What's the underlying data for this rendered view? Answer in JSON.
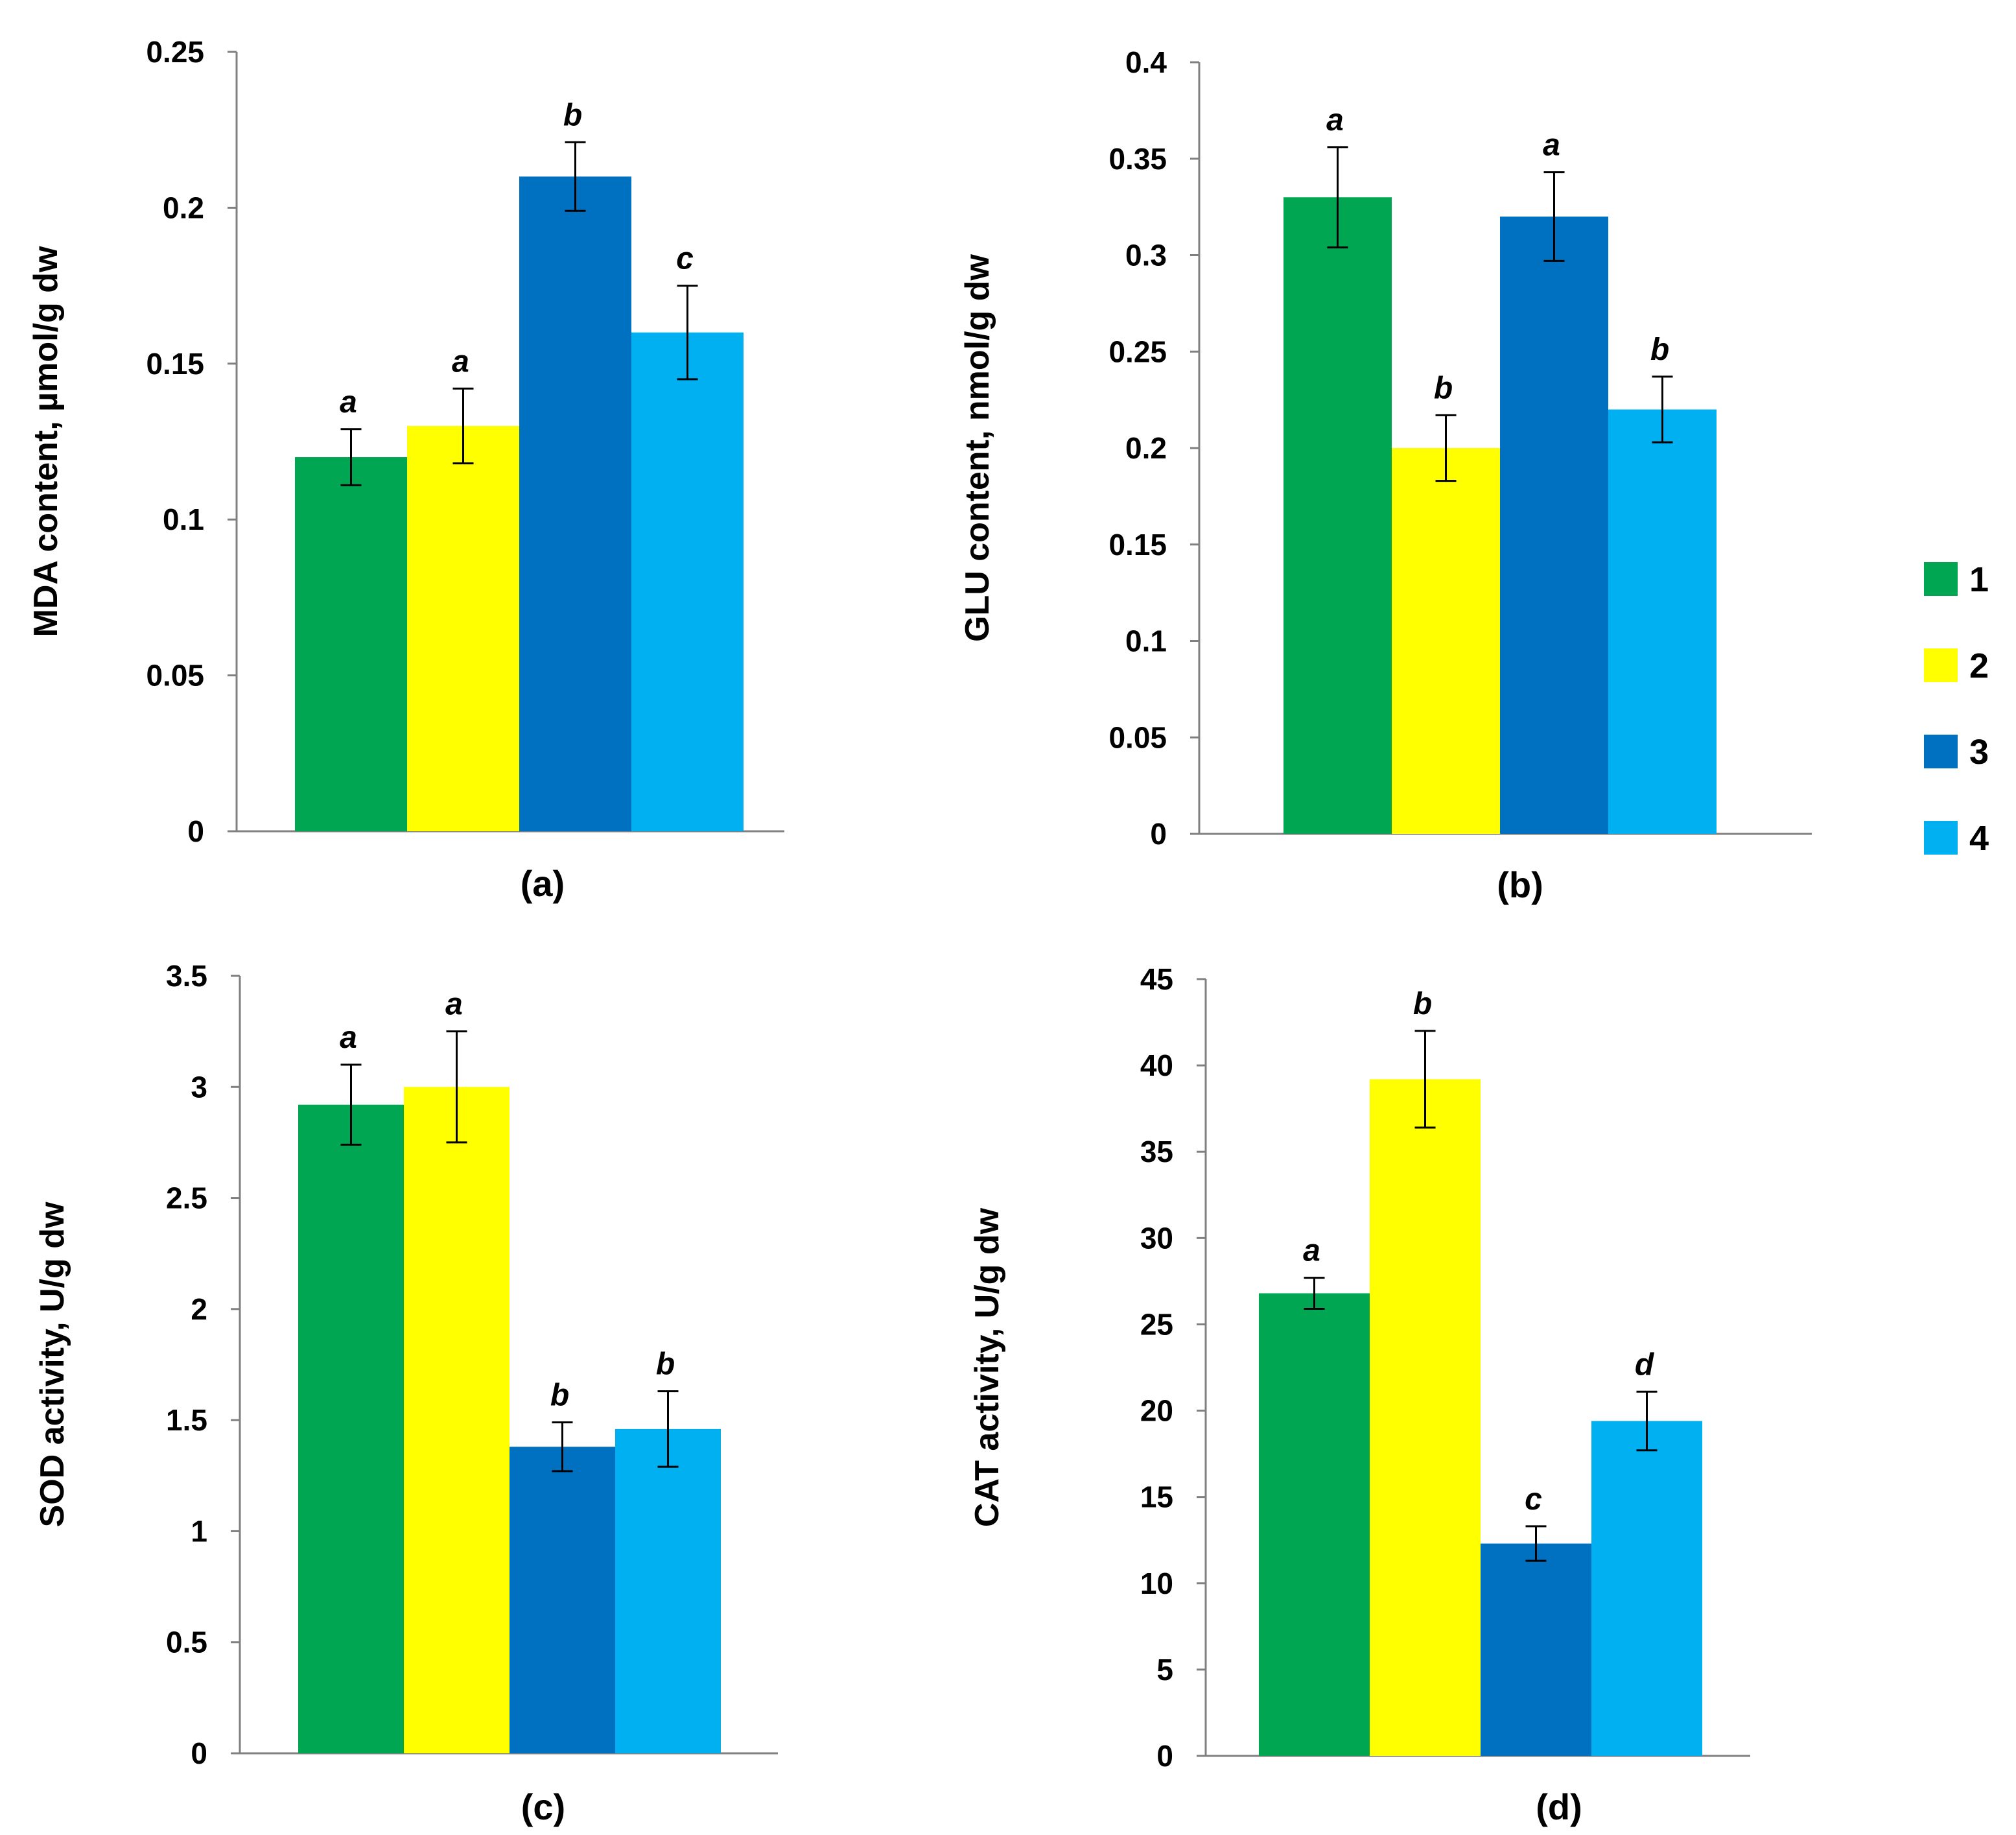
{
  "chart_data": [
    {
      "id": "a",
      "type": "bar",
      "panel_label": "(a)",
      "ylabel": "MDA content, µmol/g dw",
      "ylim": [
        0,
        0.25
      ],
      "yticks": [
        0,
        0.05,
        0.1,
        0.15,
        0.2,
        0.25
      ],
      "ytick_labels": [
        "0",
        "0.05",
        "0.1",
        "0.15",
        "0.2",
        "0.25"
      ],
      "categories": [
        "1",
        "2",
        "3",
        "4"
      ],
      "values": [
        0.12,
        0.13,
        0.21,
        0.16
      ],
      "errors": [
        0.009,
        0.012,
        0.011,
        0.015
      ],
      "significance": [
        "a",
        "a",
        "b",
        "c"
      ]
    },
    {
      "id": "b",
      "type": "bar",
      "panel_label": "(b)",
      "ylabel": "GLU content, nmol/g dw",
      "ylim": [
        0,
        0.4
      ],
      "yticks": [
        0,
        0.05,
        0.1,
        0.15,
        0.2,
        0.25,
        0.3,
        0.35,
        0.4
      ],
      "ytick_labels": [
        "0",
        "0.05",
        "0.1",
        "0.15",
        "0.2",
        "0.25",
        "0.3",
        "0.35",
        "0.4"
      ],
      "categories": [
        "1",
        "2",
        "3",
        "4"
      ],
      "values": [
        0.33,
        0.2,
        0.32,
        0.22
      ],
      "errors": [
        0.026,
        0.017,
        0.023,
        0.017
      ],
      "significance": [
        "a",
        "b",
        "a",
        "b"
      ]
    },
    {
      "id": "c",
      "type": "bar",
      "panel_label": "(c)",
      "ylabel": "SOD activity, U/g dw",
      "ylim": [
        0,
        3.5
      ],
      "yticks": [
        0,
        0.5,
        1,
        1.5,
        2,
        2.5,
        3,
        3.5
      ],
      "ytick_labels": [
        "0",
        "0.5",
        "1",
        "1.5",
        "2",
        "2.5",
        "3",
        "3.5"
      ],
      "categories": [
        "1",
        "2",
        "3",
        "4"
      ],
      "values": [
        2.92,
        3.0,
        1.38,
        1.46
      ],
      "errors": [
        0.18,
        0.25,
        0.11,
        0.17
      ],
      "significance": [
        "a",
        "a",
        "b",
        "b"
      ]
    },
    {
      "id": "d",
      "type": "bar",
      "panel_label": "(d)",
      "ylabel": "CAT activity, U/g dw",
      "ylim": [
        0,
        45
      ],
      "yticks": [
        0,
        5,
        10,
        15,
        20,
        25,
        30,
        35,
        40,
        45
      ],
      "ytick_labels": [
        "0",
        "5",
        "10",
        "15",
        "20",
        "25",
        "30",
        "35",
        "40",
        "45"
      ],
      "categories": [
        "1",
        "2",
        "3",
        "4"
      ],
      "values": [
        26.8,
        39.2,
        12.3,
        19.4
      ],
      "errors": [
        0.9,
        2.8,
        1.0,
        1.7
      ],
      "significance": [
        "a",
        "b",
        "c",
        "d"
      ]
    }
  ],
  "legend": {
    "position": "right",
    "entries": [
      {
        "label": "1",
        "color": "#00A651"
      },
      {
        "label": "2",
        "color": "#FFFF00"
      },
      {
        "label": "3",
        "color": "#0070C0"
      },
      {
        "label": "4",
        "color": "#00B0F0"
      }
    ]
  }
}
